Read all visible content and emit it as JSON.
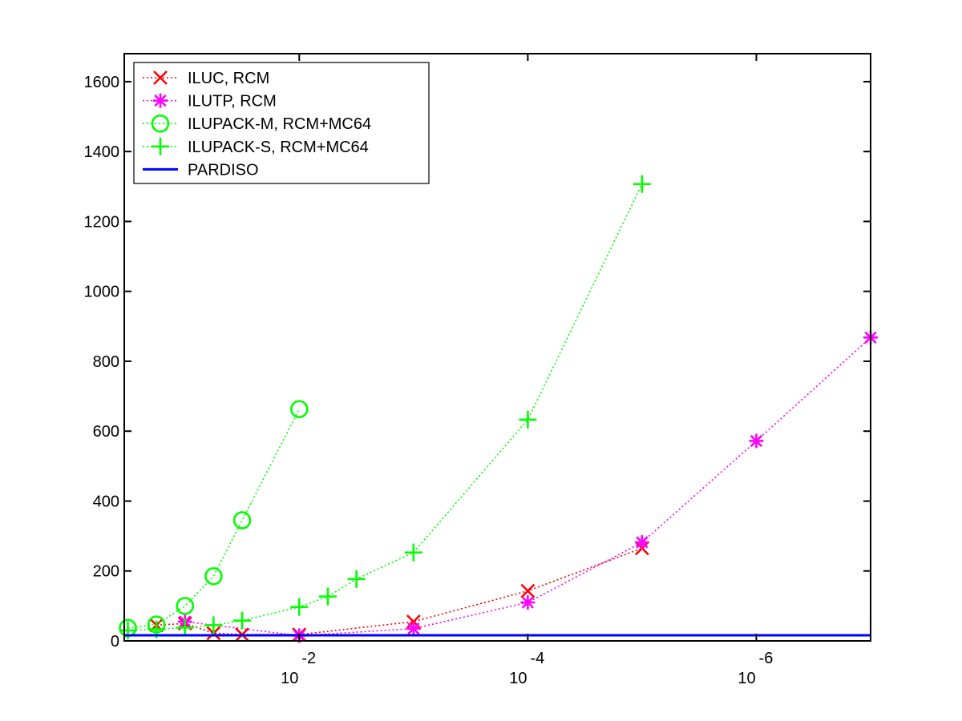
{
  "chart_data": {
    "type": "line",
    "title": "",
    "xlabel": "",
    "ylabel": "",
    "x_scale": "log-reversed",
    "xlim": [
      0.34,
      1e-07
    ],
    "ylim": [
      0,
      1680
    ],
    "y_ticks": [
      0,
      200,
      400,
      600,
      800,
      1000,
      1200,
      1400,
      1600
    ],
    "x_ticks": [
      {
        "value": 0.01,
        "base": "10",
        "exponent": "-2"
      },
      {
        "value": 0.0001,
        "base": "10",
        "exponent": "-4"
      },
      {
        "value": 1e-06,
        "base": "10",
        "exponent": "-6"
      }
    ],
    "grid": false,
    "legend_position": "top-left",
    "series": [
      {
        "name": "ILUC, RCM",
        "color": "#ff0000",
        "marker": "x",
        "line_style": "dotted",
        "points": [
          {
            "x": 0.1778,
            "y": 45
          },
          {
            "x": 0.1,
            "y": 50
          },
          {
            "x": 0.05623,
            "y": 22
          },
          {
            "x": 0.03162,
            "y": 18
          },
          {
            "x": 0.01,
            "y": 18
          },
          {
            "x": 0.001,
            "y": 55
          },
          {
            "x": 0.0001,
            "y": 143
          },
          {
            "x": 1e-05,
            "y": 265
          }
        ]
      },
      {
        "name": "ILUTP, RCM",
        "color": "#ff00ff",
        "marker": "asterisk",
        "line_style": "dotted",
        "points": [
          {
            "x": 0.1,
            "y": 55
          },
          {
            "x": 0.01,
            "y": 15
          },
          {
            "x": 0.001,
            "y": 35
          },
          {
            "x": 0.0001,
            "y": 110
          },
          {
            "x": 1e-05,
            "y": 282
          },
          {
            "x": 1e-06,
            "y": 572
          },
          {
            "x": 1e-07,
            "y": 868
          }
        ]
      },
      {
        "name": "ILUPACK-M, RCM+MC64",
        "color": "#00ff00",
        "marker": "circle",
        "line_style": "dotted",
        "points": [
          {
            "x": 0.3162,
            "y": 37
          },
          {
            "x": 0.1778,
            "y": 47
          },
          {
            "x": 0.1,
            "y": 100
          },
          {
            "x": 0.05623,
            "y": 185
          },
          {
            "x": 0.03162,
            "y": 345
          },
          {
            "x": 0.01,
            "y": 663
          }
        ]
      },
      {
        "name": "ILUPACK-S, RCM+MC64",
        "color": "#00ff00",
        "marker": "plus",
        "line_style": "dotted",
        "points": [
          {
            "x": 0.3162,
            "y": 30
          },
          {
            "x": 0.1778,
            "y": 33
          },
          {
            "x": 0.1,
            "y": 38
          },
          {
            "x": 0.05623,
            "y": 45
          },
          {
            "x": 0.03162,
            "y": 58
          },
          {
            "x": 0.01,
            "y": 97
          },
          {
            "x": 0.005623,
            "y": 127
          },
          {
            "x": 0.003162,
            "y": 177
          },
          {
            "x": 0.001,
            "y": 253
          },
          {
            "x": 0.0001,
            "y": 633
          },
          {
            "x": 1e-05,
            "y": 1307
          }
        ]
      },
      {
        "name": "PARDISO",
        "color": "#0000ff",
        "marker": "none",
        "line_style": "solid",
        "points": [
          {
            "x": 0.34,
            "y": 16
          },
          {
            "x": 1e-07,
            "y": 16
          }
        ]
      }
    ]
  }
}
